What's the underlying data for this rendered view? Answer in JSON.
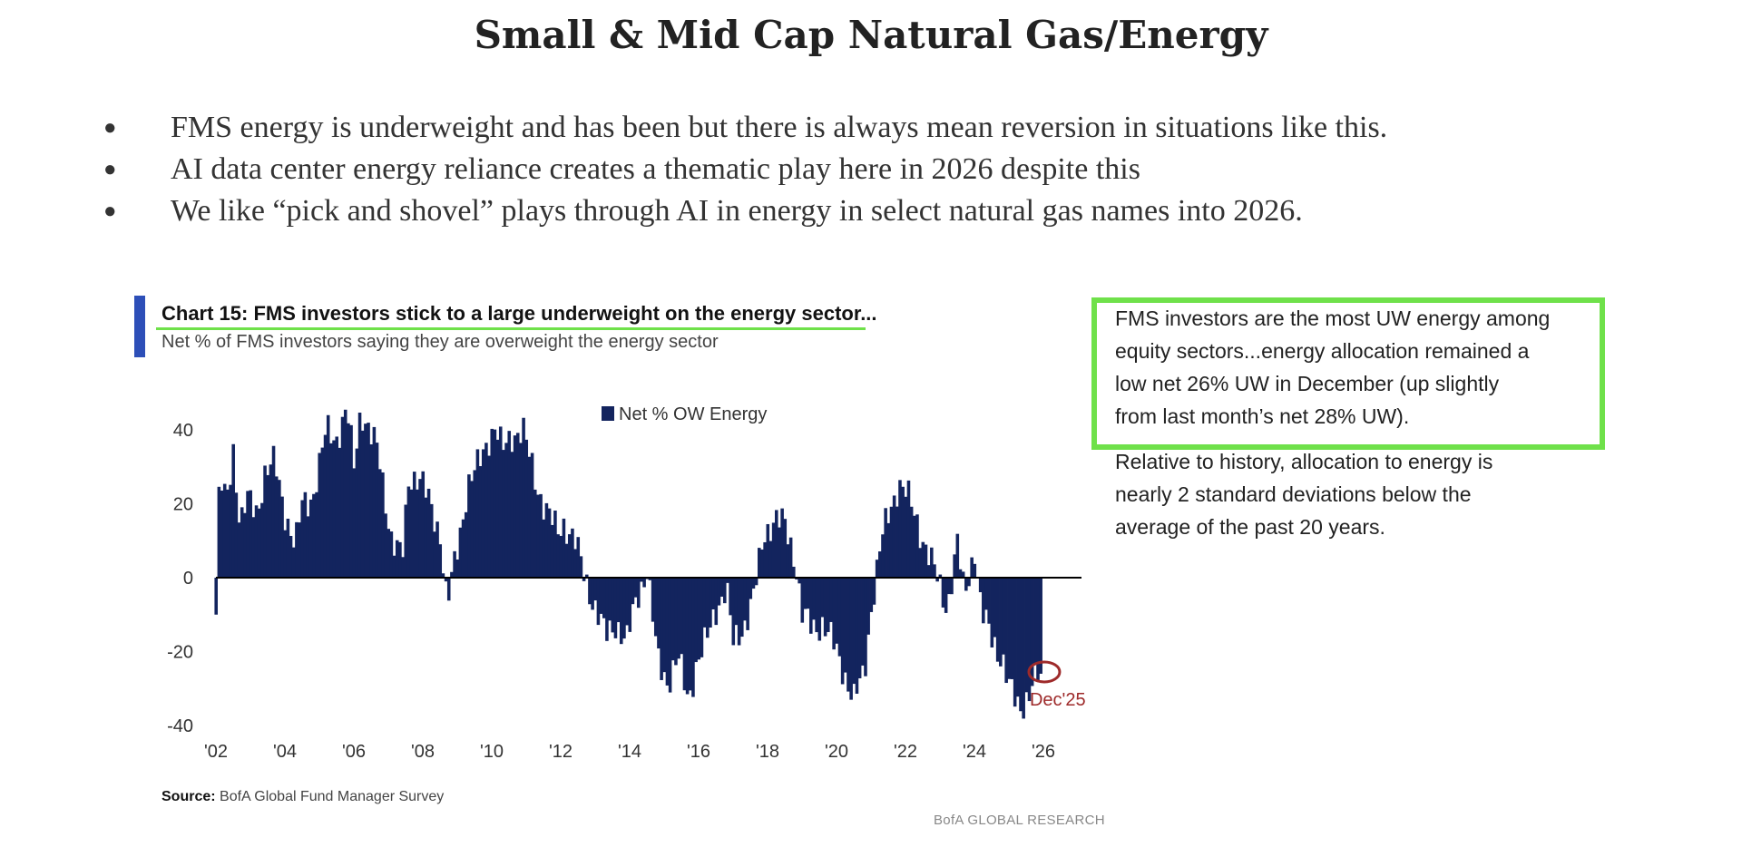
{
  "page": {
    "title": "Small & Mid Cap Natural Gas/Energy",
    "bullets": [
      "FMS energy is underweight and has been but there is always mean reversion in situations like this.",
      "AI data center energy reliance creates a thematic play here in 2026 despite this",
      "We like “pick and shovel” plays through AI in energy in select natural gas names into 2026."
    ],
    "note_highlight_lines": [
      "FMS investors are the most UW energy among",
      "equity sectors...energy allocation remained a",
      "low net 26% UW in December (up slightly",
      "from last month’s net 28% UW)."
    ],
    "note_lines": [
      "Relative to history, allocation to energy is",
      "nearly 2 standard deviations below the",
      "average of the past 20 years."
    ]
  },
  "colors": {
    "bar": "#13245e",
    "highlight": "#6fe14a",
    "accent": "#2d4fb8",
    "callout": "#9e2a2a"
  },
  "chart_data": {
    "type": "bar",
    "title": "Chart 15: FMS investors stick to a large underweight on the energy sector...",
    "subtitle": "Net % of FMS investors saying they are overweight the energy sector",
    "legend": [
      "Net % OW Energy"
    ],
    "legend_position": "top-center",
    "x_tick_labels": [
      "'02",
      "'04",
      "'06",
      "'08",
      "'10",
      "'12",
      "'14",
      "'16",
      "'18",
      "'20",
      "'22",
      "'24",
      "'26"
    ],
    "x_range": [
      2002.0,
      2026.0
    ],
    "ylim": [
      -40,
      50
    ],
    "y_ticks": [
      40,
      20,
      0,
      -20,
      -40
    ],
    "callout_label": "Dec'25",
    "callout_point": {
      "x": 2025.92,
      "y": -26
    },
    "source_label": "Source:",
    "source": "BofA Global Fund Manager Survey",
    "brand": "BofA GLOBAL RESEARCH",
    "anchors": [
      [
        2002.0,
        -10
      ],
      [
        2002.1,
        27
      ],
      [
        2002.3,
        20
      ],
      [
        2002.5,
        35
      ],
      [
        2002.7,
        14
      ],
      [
        2002.9,
        21
      ],
      [
        2003.2,
        18
      ],
      [
        2003.4,
        28
      ],
      [
        2003.7,
        31
      ],
      [
        2004.0,
        18
      ],
      [
        2004.3,
        8
      ],
      [
        2004.5,
        20
      ],
      [
        2004.8,
        22
      ],
      [
        2005.0,
        30
      ],
      [
        2005.2,
        40
      ],
      [
        2005.5,
        38
      ],
      [
        2005.8,
        45
      ],
      [
        2006.0,
        30
      ],
      [
        2006.2,
        46
      ],
      [
        2006.5,
        38
      ],
      [
        2006.7,
        34
      ],
      [
        2006.9,
        22
      ],
      [
        2007.1,
        10
      ],
      [
        2007.4,
        5
      ],
      [
        2007.6,
        28
      ],
      [
        2007.9,
        27
      ],
      [
        2008.2,
        20
      ],
      [
        2008.5,
        12
      ],
      [
        2008.7,
        -8
      ],
      [
        2009.0,
        8
      ],
      [
        2009.3,
        25
      ],
      [
        2009.6,
        30
      ],
      [
        2009.9,
        38
      ],
      [
        2010.1,
        41
      ],
      [
        2010.3,
        34
      ],
      [
        2010.6,
        39
      ],
      [
        2010.9,
        40
      ],
      [
        2011.1,
        32
      ],
      [
        2011.3,
        25
      ],
      [
        2011.6,
        18
      ],
      [
        2011.9,
        12
      ],
      [
        2012.1,
        15
      ],
      [
        2012.4,
        10
      ],
      [
        2012.7,
        0
      ],
      [
        2013.0,
        -8
      ],
      [
        2013.3,
        -16
      ],
      [
        2013.6,
        -12
      ],
      [
        2013.9,
        -18
      ],
      [
        2014.2,
        -5
      ],
      [
        2014.5,
        2
      ],
      [
        2014.8,
        -22
      ],
      [
        2015.1,
        -28
      ],
      [
        2015.4,
        -22
      ],
      [
        2015.7,
        -33
      ],
      [
        2015.9,
        -24
      ],
      [
        2016.2,
        -18
      ],
      [
        2016.5,
        -8
      ],
      [
        2016.8,
        -3
      ],
      [
        2017.0,
        -18
      ],
      [
        2017.3,
        -13
      ],
      [
        2017.6,
        -5
      ],
      [
        2017.9,
        12
      ],
      [
        2018.2,
        16
      ],
      [
        2018.5,
        14
      ],
      [
        2018.8,
        5
      ],
      [
        2019.0,
        -10
      ],
      [
        2019.3,
        -14
      ],
      [
        2019.6,
        -12
      ],
      [
        2019.9,
        -18
      ],
      [
        2020.2,
        -25
      ],
      [
        2020.5,
        -33
      ],
      [
        2020.8,
        -26
      ],
      [
        2021.0,
        -8
      ],
      [
        2021.3,
        10
      ],
      [
        2021.6,
        20
      ],
      [
        2021.8,
        26
      ],
      [
        2022.0,
        23
      ],
      [
        2022.3,
        16
      ],
      [
        2022.6,
        8
      ],
      [
        2022.9,
        0
      ],
      [
        2023.2,
        -8
      ],
      [
        2023.5,
        9
      ],
      [
        2023.7,
        -5
      ],
      [
        2024.0,
        8
      ],
      [
        2024.2,
        -10
      ],
      [
        2024.5,
        -16
      ],
      [
        2024.8,
        -22
      ],
      [
        2025.0,
        -30
      ],
      [
        2025.3,
        -35
      ],
      [
        2025.55,
        -32
      ],
      [
        2025.75,
        -28
      ],
      [
        2025.92,
        -26
      ]
    ]
  }
}
